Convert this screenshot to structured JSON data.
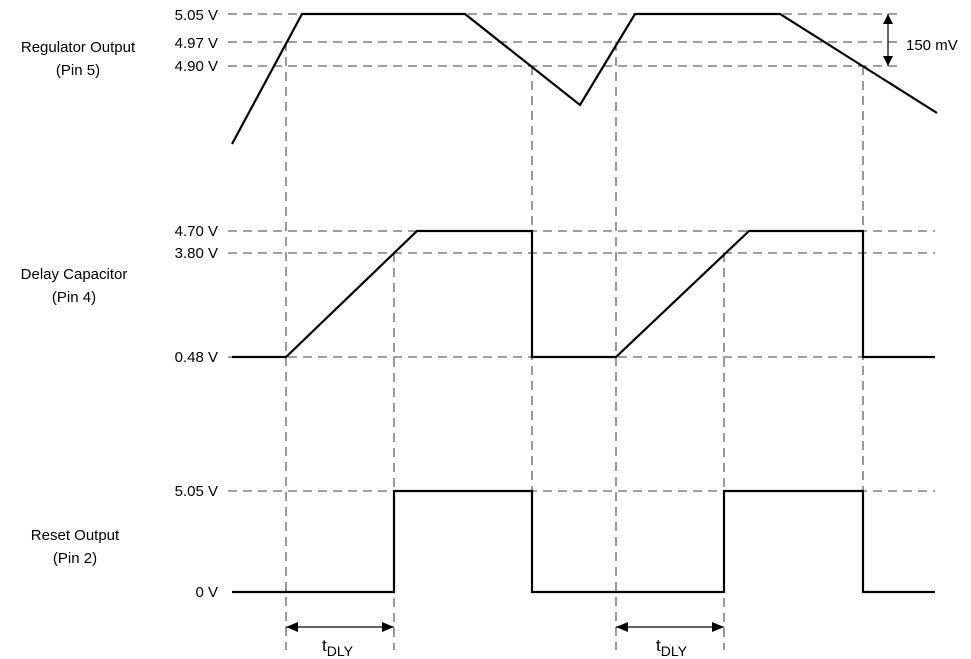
{
  "diagram": {
    "signals": [
      {
        "key": "regulator",
        "label_line1": "Regulator Output",
        "label_line2": "(Pin 5)",
        "levels": [
          "5.05 V",
          "4.97 V",
          "4.90 V"
        ]
      },
      {
        "key": "delay",
        "label_line1": "Delay Capacitor",
        "label_line2": "(Pin 4)",
        "levels": [
          "4.70 V",
          "3.80 V",
          "0.48 V"
        ]
      },
      {
        "key": "reset",
        "label_line1": "Reset Output",
        "label_line2": "(Pin 2)",
        "levels": [
          "5.05 V",
          "0 V"
        ]
      }
    ],
    "hysteresis_label": "150 mV",
    "delay_annotation": {
      "main": "t",
      "subscript": "DLY",
      "count": 2
    }
  }
}
